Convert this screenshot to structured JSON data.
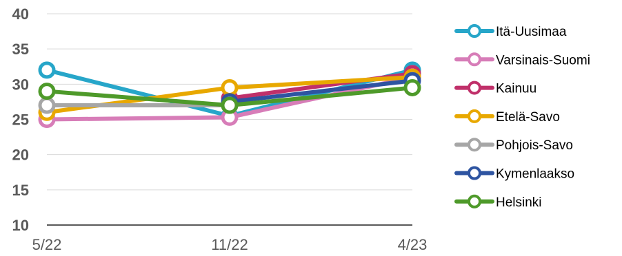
{
  "chart_data": {
    "type": "line",
    "x": [
      "5/22",
      "11/22",
      "4/23"
    ],
    "ylim": [
      10,
      40
    ],
    "yticks": [
      10,
      15,
      20,
      25,
      30,
      35,
      40
    ],
    "grid": true,
    "legend_position": "right",
    "series": [
      {
        "name": "Itä-Uusimaa",
        "color": "#27A6C9",
        "values": [
          32,
          25.5,
          32
        ]
      },
      {
        "name": "Varsinais-Suomi",
        "color": "#D77DB8",
        "values": [
          25,
          25.3,
          31
        ]
      },
      {
        "name": "Kainuu",
        "color": "#C0306A",
        "values": [
          null,
          28,
          31.5
        ]
      },
      {
        "name": "Etelä-Savo",
        "color": "#E8A800",
        "values": [
          26,
          29.5,
          31
        ]
      },
      {
        "name": "Pohjois-Savo",
        "color": "#A6A6A6",
        "values": [
          27,
          27,
          null
        ]
      },
      {
        "name": "Kymenlaakso",
        "color": "#2E54A1",
        "values": [
          null,
          27.5,
          30.5
        ]
      },
      {
        "name": "Helsinki",
        "color": "#4E9A2A",
        "values": [
          29,
          27,
          29.5
        ]
      }
    ]
  }
}
